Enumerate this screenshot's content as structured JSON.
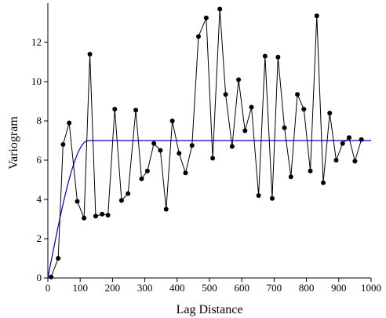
{
  "chart_data": {
    "type": "line",
    "title": "",
    "xlabel": "Lag Distance",
    "ylabel": "Variogram",
    "xlim": [
      0,
      1000
    ],
    "ylim": [
      0,
      14
    ],
    "xticks": [
      0,
      100,
      200,
      300,
      400,
      500,
      600,
      700,
      800,
      900,
      1000
    ],
    "yticks": [
      0,
      2,
      4,
      6,
      8,
      10,
      12
    ],
    "grid": false,
    "legend": "none",
    "series": [
      {
        "kind": "empirical",
        "style": "black line with filled circle markers",
        "color": "#000000",
        "x": [
          10,
          32,
          47,
          66,
          91,
          112,
          130,
          148,
          168,
          186,
          207,
          228,
          248,
          272,
          290,
          308,
          328,
          348,
          366,
          385,
          406,
          426,
          446,
          466,
          490,
          510,
          532,
          550,
          570,
          590,
          610,
          630,
          652,
          672,
          694,
          712,
          732,
          752,
          772,
          792,
          812,
          832,
          852,
          872,
          892,
          912,
          932,
          950,
          970
        ],
        "y": [
          0.05,
          1.0,
          6.8,
          7.9,
          3.9,
          3.05,
          11.4,
          3.15,
          3.25,
          3.2,
          8.6,
          3.95,
          4.3,
          8.55,
          5.05,
          5.45,
          6.85,
          6.5,
          3.5,
          8.0,
          6.35,
          5.35,
          6.75,
          12.3,
          13.25,
          6.1,
          13.7,
          9.35,
          6.7,
          10.1,
          7.5,
          8.7,
          4.2,
          11.3,
          4.05,
          11.25,
          7.65,
          5.15,
          9.35,
          8.6,
          5.45,
          13.35,
          4.85,
          8.4,
          6.0,
          6.85,
          7.15,
          5.95,
          7.05
        ]
      },
      {
        "kind": "model-fit",
        "style": "blue smooth curve",
        "color": "#0000cc",
        "model": "spherical",
        "nugget": 0,
        "sill": 7.0,
        "range": 125
      }
    ]
  }
}
